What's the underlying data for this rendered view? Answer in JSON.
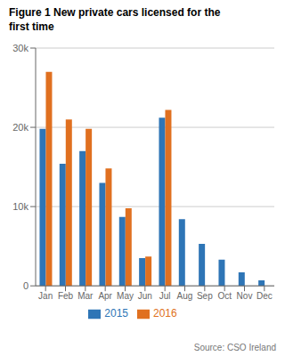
{
  "chart_data": {
    "type": "bar",
    "title": "Figure 1 New private cars licensed for the\nfirst time",
    "categories": [
      "Jan",
      "Feb",
      "Mar",
      "Apr",
      "May",
      "Jun",
      "Jul",
      "Aug",
      "Sep",
      "Oct",
      "Nov",
      "Dec"
    ],
    "series": [
      {
        "name": "2015",
        "color": "#2e75b6",
        "values": [
          19800,
          15400,
          17000,
          13000,
          8700,
          3500,
          21200,
          8400,
          5300,
          3300,
          1700,
          700
        ]
      },
      {
        "name": "2016",
        "color": "#e07020",
        "values": [
          27000,
          21000,
          19800,
          14800,
          9800,
          3700,
          22200,
          0,
          0,
          0,
          0,
          0
        ]
      }
    ],
    "ylim": [
      0,
      30000
    ],
    "yticks": [
      0,
      {
        "value": 10000,
        "label": "10k"
      },
      {
        "value": 20000,
        "label": "20k"
      },
      {
        "value": 30000,
        "label": "30k"
      }
    ],
    "grid": true,
    "legend": "bottom",
    "annotations": [
      "Source: CSO Ireland"
    ]
  }
}
